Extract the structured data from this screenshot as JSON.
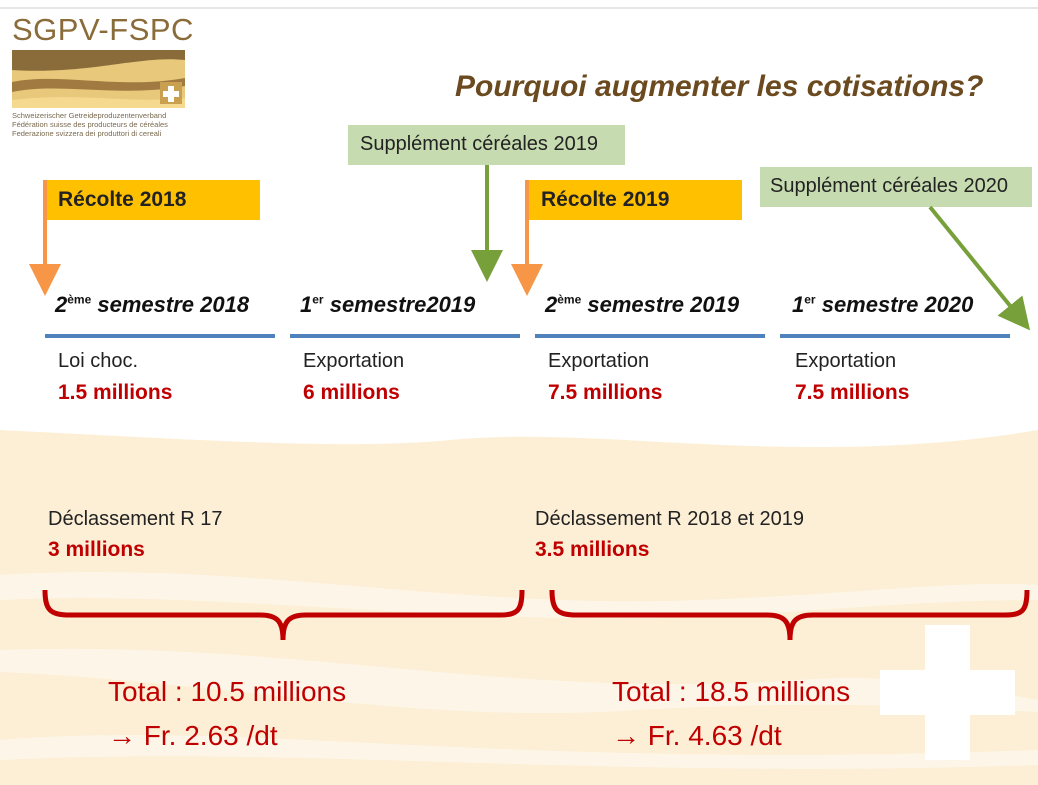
{
  "logo": {
    "title": "SGPV-FSPC",
    "lines": [
      "Schweizerischer Getreideproduzentenverband",
      "Fédération suisse des producteurs de céréales",
      "Federazione svizzera dei produttori di cereali"
    ]
  },
  "title": "Pourquoi augmenter les cotisations?",
  "flags": [
    "Récolte 2018",
    "Récolte 2019"
  ],
  "supplements": [
    "Supplément céréales 2019",
    "Supplément céréales 2020"
  ],
  "periods": [
    {
      "ordinal": "2",
      "suffix": "ème",
      "label": " semestre 2018",
      "item": "Loi choc.",
      "amount": "1.5 millions"
    },
    {
      "ordinal": "1",
      "suffix": "er",
      "label": " semestre2019",
      "item": "Exportation",
      "amount": "6 millions"
    },
    {
      "ordinal": "2",
      "suffix": "ème",
      "label": " semestre 2019",
      "item": "Exportation",
      "amount": "7.5 millions"
    },
    {
      "ordinal": "1",
      "suffix": "er",
      "label": " semestre 2020",
      "item": "Exportation",
      "amount": "7.5 millions"
    }
  ],
  "declassements": [
    {
      "label": "Déclassement R 17",
      "amount": "3 millions"
    },
    {
      "label": "Déclassement R 2018 et 2019",
      "amount": "3.5 millions"
    }
  ],
  "totals": [
    {
      "total": "Total : 10.5 millions",
      "rate": "→ Fr. 2.63 /dt"
    },
    {
      "total": "Total : 18.5 millions",
      "rate": "→ Fr. 4.63 /dt"
    }
  ]
}
